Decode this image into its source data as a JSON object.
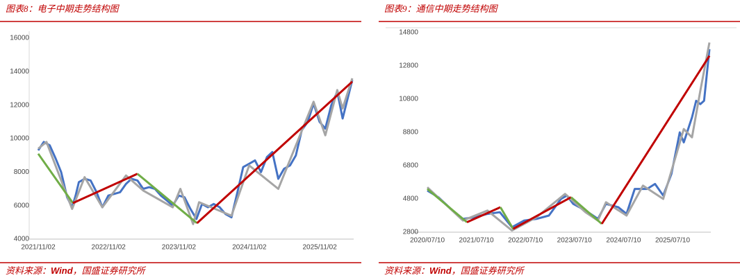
{
  "chart_data": [
    {
      "type": "line",
      "title": "图表8：电子中期走势结构图",
      "source": {
        "label": "资料来源：",
        "name": "Wind",
        "rest": "，国盛证券研究所"
      },
      "xlim": [
        "2021/11/02",
        "2026/04/20"
      ],
      "xticks": [
        "2021/11/02",
        "2022/11/02",
        "2023/11/02",
        "2024/11/02",
        "2025/11/02"
      ],
      "ylim": [
        4000,
        16000
      ],
      "yticks": [
        4000,
        6000,
        8000,
        10000,
        12000,
        14000,
        16000
      ],
      "series": [
        {
          "color": "#4472c4",
          "x": [
            "2021/11/02",
            "2021/12/01",
            "2022/01/01",
            "2022/02/01",
            "2022/03/01",
            "2022/04/01",
            "2022/04/27",
            "2022/05/15",
            "2022/06/01",
            "2022/07/01",
            "2022/08/01",
            "2022/09/01",
            "2022/10/01",
            "2022/11/01",
            "2022/12/01",
            "2023/01/01",
            "2023/02/01",
            "2023/03/01",
            "2023/04/01",
            "2023/05/01",
            "2023/06/01",
            "2023/07/01",
            "2023/08/01",
            "2023/09/01",
            "2023/10/01",
            "2023/11/01",
            "2023/12/01",
            "2024/01/01",
            "2024/02/01",
            "2024/03/01",
            "2024/04/01",
            "2024/05/01",
            "2024/06/01",
            "2024/07/01",
            "2024/08/01",
            "2024/09/01",
            "2024/10/01",
            "2024/11/01",
            "2024/12/01",
            "2025/01/01",
            "2025/02/01",
            "2025/03/01",
            "2025/04/01",
            "2025/05/01",
            "2025/06/01",
            "2025/07/01",
            "2025/08/01",
            "2025/09/01",
            "2025/10/01",
            "2025/11/01",
            "2025/12/01",
            "2026/01/01",
            "2026/02/01",
            "2026/03/01",
            "2026/04/20"
          ],
          "values": [
            9300,
            9800,
            9600,
            8800,
            8000,
            6500,
            5900,
            6600,
            7400,
            7600,
            7500,
            6800,
            5900,
            6600,
            6700,
            6800,
            7300,
            7600,
            7500,
            7000,
            7100,
            7000,
            6600,
            6300,
            6000,
            6600,
            6500,
            5800,
            5200,
            6100,
            5900,
            6100,
            5900,
            5500,
            5300,
            6800,
            8300,
            8500,
            8700,
            8000,
            8900,
            9200,
            7600,
            8200,
            8400,
            9000,
            10500,
            11000,
            12100,
            11000,
            10600,
            12000,
            12800,
            11200,
            13500
          ]
        },
        {
          "color": "#a5a5a5",
          "x": [
            "2021/11/02",
            "2021/12/15",
            "2022/04/27",
            "2022/07/01",
            "2022/10/01",
            "2023/02/01",
            "2023/05/01",
            "2023/10/01",
            "2023/11/10",
            "2024/01/15",
            "2024/02/15",
            "2024/08/01",
            "2024/11/01",
            "2025/04/01",
            "2025/10/01",
            "2025/12/01",
            "2026/02/01",
            "2026/03/01",
            "2026/04/20"
          ],
          "values": [
            9400,
            9800,
            5800,
            7700,
            5900,
            7800,
            6900,
            5900,
            7000,
            4900,
            6200,
            5400,
            8400,
            7000,
            12200,
            10200,
            12900,
            11800,
            13600
          ]
        },
        {
          "color": "#70ad47",
          "x": [
            "2021/11/02",
            "2022/05/01"
          ],
          "values": [
            9100,
            6150
          ]
        },
        {
          "color": "#c00000",
          "x": [
            "2022/05/01",
            "2023/04/01"
          ],
          "values": [
            6150,
            7900
          ]
        },
        {
          "color": "#70ad47",
          "x": [
            "2023/04/01",
            "2024/02/04"
          ],
          "values": [
            7900,
            4950
          ]
        },
        {
          "color": "#c00000",
          "x": [
            "2024/02/04",
            "2026/04/20"
          ],
          "values": [
            4950,
            13400
          ]
        }
      ]
    },
    {
      "type": "line",
      "title": "图表9：通信中期走势结构图",
      "source": {
        "label": "资料来源：",
        "name": "Wind",
        "rest": "，国盛证券研究所"
      },
      "xlim": [
        "2020/07/10",
        "2026/04/10"
      ],
      "xticks": [
        "2020/07/10",
        "2021/07/10",
        "2022/07/10",
        "2023/07/10",
        "2024/07/10",
        "2025/07/10"
      ],
      "ylim": [
        2800,
        14800
      ],
      "yticks": [
        2800,
        4800,
        6800,
        8800,
        10800,
        12800,
        14800
      ],
      "series": [
        {
          "color": "#4472c4",
          "x": [
            "2020/07/10",
            "2020/10/01",
            "2021/01/01",
            "2021/04/01",
            "2021/07/01",
            "2021/10/01",
            "2022/01/01",
            "2022/04/01",
            "2022/07/01",
            "2022/10/01",
            "2023/01/01",
            "2023/04/01",
            "2023/05/15",
            "2023/07/01",
            "2023/10/01",
            "2024/01/01",
            "2024/03/01",
            "2024/06/01",
            "2024/08/01",
            "2024/10/01",
            "2025/01/01",
            "2025/03/01",
            "2025/05/01",
            "2025/07/01",
            "2025/09/01",
            "2025/10/01",
            "2025/12/01",
            "2026/01/01",
            "2026/02/01",
            "2026/03/01",
            "2026/04/10"
          ],
          "values": [
            5300,
            4900,
            4200,
            3600,
            3700,
            3900,
            4000,
            3100,
            3500,
            3600,
            3800,
            4800,
            5000,
            4500,
            4100,
            3600,
            4500,
            4300,
            3900,
            5400,
            5400,
            5700,
            5000,
            6300,
            8800,
            8200,
            9700,
            10700,
            10500,
            10700,
            13800
          ]
        },
        {
          "color": "#a5a5a5",
          "x": [
            "2020/07/10",
            "2021/04/01",
            "2021/10/01",
            "2022/04/01",
            "2022/10/01",
            "2023/05/01",
            "2023/10/01",
            "2024/01/01",
            "2024/03/01",
            "2024/08/01",
            "2024/12/01",
            "2025/05/01",
            "2025/10/01",
            "2025/12/01",
            "2026/02/01",
            "2026/04/10"
          ],
          "values": [
            5500,
            3500,
            4100,
            2900,
            3700,
            5100,
            4000,
            3500,
            4600,
            3800,
            5600,
            4800,
            9000,
            8500,
            11300,
            14200
          ]
        },
        {
          "color": "#70ad47",
          "x": [
            "2020/07/10",
            "2021/05/01"
          ],
          "values": [
            5400,
            3400
          ]
        },
        {
          "color": "#c00000",
          "x": [
            "2021/05/01",
            "2022/01/05"
          ],
          "values": [
            3400,
            4300
          ]
        },
        {
          "color": "#70ad47",
          "x": [
            "2022/01/05",
            "2022/04/10"
          ],
          "values": [
            4300,
            3000
          ]
        },
        {
          "color": "#c00000",
          "x": [
            "2022/04/10",
            "2023/06/15"
          ],
          "values": [
            3000,
            4900
          ]
        },
        {
          "color": "#70ad47",
          "x": [
            "2023/06/15",
            "2024/01/30"
          ],
          "values": [
            4900,
            3300
          ]
        },
        {
          "color": "#c00000",
          "x": [
            "2024/01/30",
            "2026/04/10"
          ],
          "values": [
            3300,
            13400
          ]
        }
      ]
    }
  ]
}
